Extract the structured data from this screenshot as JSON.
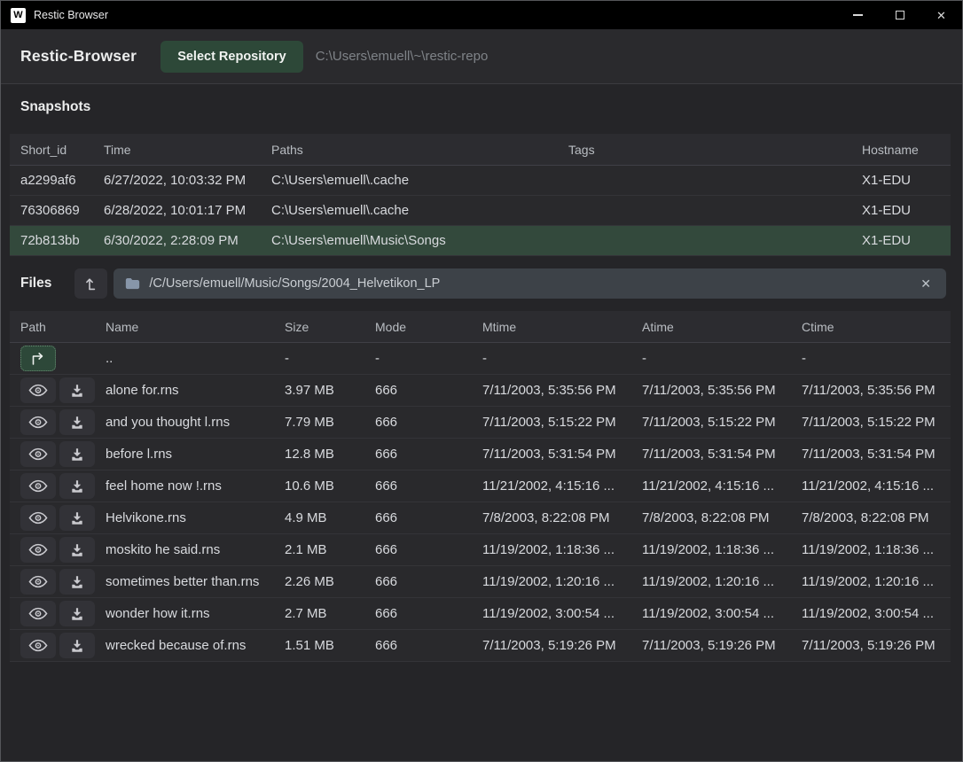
{
  "window": {
    "title": "Restic Browser",
    "icon_letter": "W",
    "close_glyph": "✕"
  },
  "header": {
    "app_name": "Restic-Browser",
    "select_repository_label": "Select Repository",
    "repository_path": "C:\\Users\\emuell\\~\\restic-repo"
  },
  "snapshots": {
    "title": "Snapshots",
    "columns": [
      "Short_id",
      "Time",
      "Paths",
      "Tags",
      "Hostname"
    ],
    "rows": [
      {
        "short_id": "a2299af6",
        "time": "6/27/2022, 10:03:32 PM",
        "paths": "C:\\Users\\emuell\\.cache",
        "tags": "",
        "hostname": "X1-EDU",
        "selected": false
      },
      {
        "short_id": "76306869",
        "time": "6/28/2022, 10:01:17 PM",
        "paths": "C:\\Users\\emuell\\.cache",
        "tags": "",
        "hostname": "X1-EDU",
        "selected": false
      },
      {
        "short_id": "72b813bb",
        "time": "6/30/2022, 2:28:09 PM",
        "paths": "C:\\Users\\emuell\\Music\\Songs",
        "tags": "",
        "hostname": "X1-EDU",
        "selected": true
      }
    ]
  },
  "files": {
    "title": "Files",
    "path_value": "/C/Users/emuell/Music/Songs/2004_Helvetikon_LP",
    "columns": [
      "Path",
      "Name",
      "Size",
      "Mode",
      "Mtime",
      "Atime",
      "Ctime"
    ],
    "parent_row": {
      "name": "..",
      "size": "-",
      "mode": "-",
      "mtime": "-",
      "atime": "-",
      "ctime": "-"
    },
    "row_action_icons": [
      "eye-icon",
      "download-icon"
    ],
    "rows": [
      {
        "name": "alone for.rns",
        "size": "3.97 MB",
        "mode": "666",
        "mtime": "7/11/2003, 5:35:56 PM",
        "atime": "7/11/2003, 5:35:56 PM",
        "ctime": "7/11/2003, 5:35:56 PM"
      },
      {
        "name": "and you thought l.rns",
        "size": "7.79 MB",
        "mode": "666",
        "mtime": "7/11/2003, 5:15:22 PM",
        "atime": "7/11/2003, 5:15:22 PM",
        "ctime": "7/11/2003, 5:15:22 PM"
      },
      {
        "name": "before l.rns",
        "size": "12.8 MB",
        "mode": "666",
        "mtime": "7/11/2003, 5:31:54 PM",
        "atime": "7/11/2003, 5:31:54 PM",
        "ctime": "7/11/2003, 5:31:54 PM"
      },
      {
        "name": "feel home now !.rns",
        "size": "10.6 MB",
        "mode": "666",
        "mtime": "11/21/2002, 4:15:16 ...",
        "atime": "11/21/2002, 4:15:16 ...",
        "ctime": "11/21/2002, 4:15:16 ..."
      },
      {
        "name": "Helvikone.rns",
        "size": "4.9 MB",
        "mode": "666",
        "mtime": "7/8/2003, 8:22:08 PM",
        "atime": "7/8/2003, 8:22:08 PM",
        "ctime": "7/8/2003, 8:22:08 PM"
      },
      {
        "name": "moskito he said.rns",
        "size": "2.1 MB",
        "mode": "666",
        "mtime": "11/19/2002, 1:18:36 ...",
        "atime": "11/19/2002, 1:18:36 ...",
        "ctime": "11/19/2002, 1:18:36 ..."
      },
      {
        "name": "sometimes better than.rns",
        "size": "2.26 MB",
        "mode": "666",
        "mtime": "11/19/2002, 1:20:16 ...",
        "atime": "11/19/2002, 1:20:16 ...",
        "ctime": "11/19/2002, 1:20:16 ..."
      },
      {
        "name": "wonder how it.rns",
        "size": "2.7 MB",
        "mode": "666",
        "mtime": "11/19/2002, 3:00:54 ...",
        "atime": "11/19/2002, 3:00:54 ...",
        "ctime": "11/19/2002, 3:00:54 ..."
      },
      {
        "name": "wrecked because of.rns",
        "size": "1.51 MB",
        "mode": "666",
        "mtime": "7/11/2003, 5:19:26 PM",
        "atime": "7/11/2003, 5:19:26 PM",
        "ctime": "7/11/2003, 5:19:26 PM"
      }
    ]
  },
  "colors": {
    "titlebar": "#000000",
    "background": "#252528",
    "accent_green": "#2d4838",
    "selected_row_green": "#33493c",
    "path_bar": "#3d4248"
  }
}
